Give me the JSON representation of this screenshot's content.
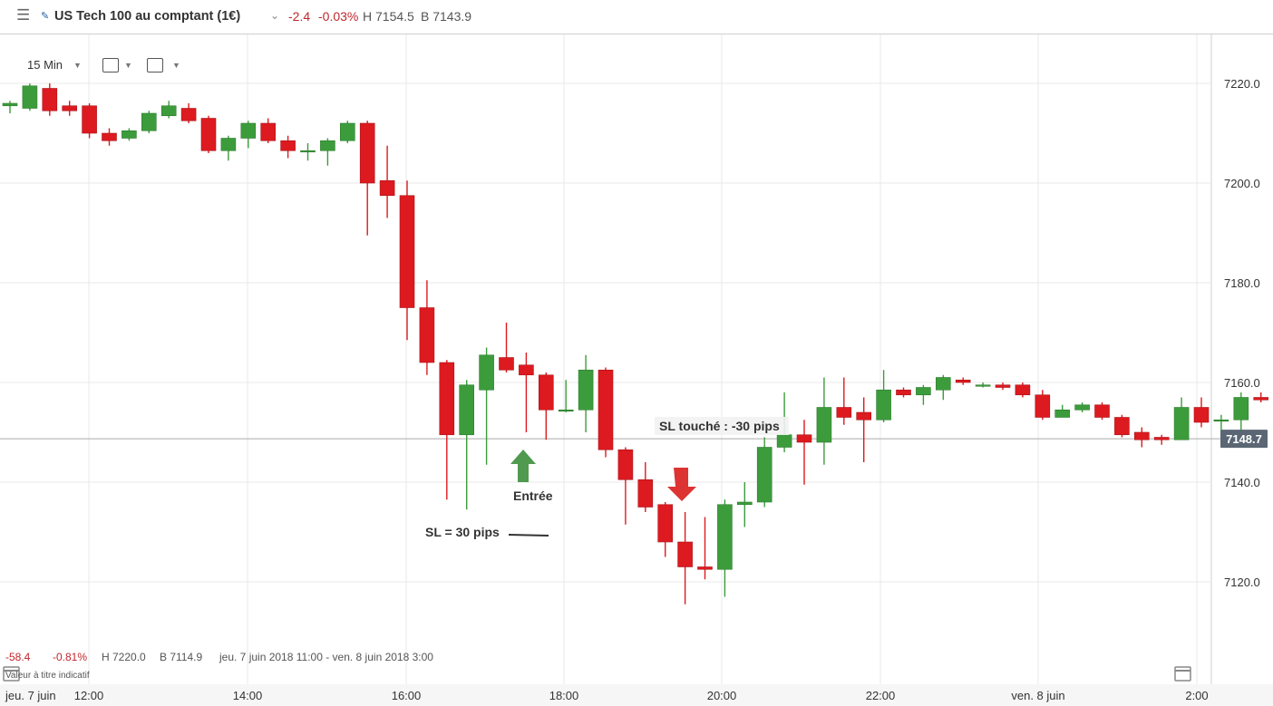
{
  "header": {
    "menu_icon": "hamburger-icon",
    "edit_icon": "pencil-icon",
    "title": "US Tech 100 au comptant (1€)",
    "change": "-2.4",
    "change_pct": "-0.03%",
    "high": "H 7154.5",
    "low": "B 7143.9"
  },
  "toolbar": {
    "interval": "15 Min",
    "tools": [
      "chart-type-icon",
      "indicators-icon"
    ]
  },
  "footer": {
    "change": "-58.4",
    "change_pct": "-0.81%",
    "high": "H 7220.0",
    "low": "B 7114.9",
    "range": "jeu. 7 juin 2018 11:00 - ven. 8 juin 2018 3:00",
    "disclaimer": "Valeur à titre indicatif"
  },
  "colors": {
    "up": "#3c9c3c",
    "down": "#dd1a1f",
    "grid": "#e8e8e8",
    "price_line": "#aaaaaa"
  },
  "chart_data": {
    "type": "candlestick",
    "interval": "15 Min",
    "y_ticks": [
      7120.0,
      7140.0,
      7160.0,
      7180.0,
      7200.0,
      7220.0
    ],
    "ylim": [
      7098,
      7229
    ],
    "x_ticks": [
      "jeu. 7 juin",
      "12:00",
      "14:00",
      "16:00",
      "18:00",
      "20:00",
      "22:00",
      "ven. 8 juin",
      "2:00"
    ],
    "current_price": "7148.7",
    "candles": [
      [
        7215.5,
        7216.0,
        7216.5,
        7214.0
      ],
      [
        7215.0,
        7219.5,
        7220.0,
        7214.5
      ],
      [
        7219.0,
        7214.5,
        7220.0,
        7213.5
      ],
      [
        7215.5,
        7214.5,
        7216.5,
        7213.5
      ],
      [
        7215.5,
        7210.0,
        7216.0,
        7209.0
      ],
      [
        7210.0,
        7208.5,
        7211.0,
        7207.5
      ],
      [
        7209.0,
        7210.5,
        7211.0,
        7208.5
      ],
      [
        7210.5,
        7214.0,
        7214.5,
        7210.0
      ],
      [
        7213.5,
        7215.5,
        7216.5,
        7213.0
      ],
      [
        7215.0,
        7212.5,
        7216.0,
        7212.0
      ],
      [
        7213.0,
        7206.5,
        7213.5,
        7206.0
      ],
      [
        7206.5,
        7209.0,
        7209.5,
        7204.5
      ],
      [
        7209.0,
        7212.0,
        7212.5,
        7207.0
      ],
      [
        7212.0,
        7208.5,
        7213.0,
        7208.0
      ],
      [
        7208.5,
        7206.5,
        7209.5,
        7205.0
      ],
      [
        7206.5,
        7206.5,
        7208.0,
        7204.5
      ],
      [
        7206.5,
        7208.5,
        7209.0,
        7203.5
      ],
      [
        7208.5,
        7212.0,
        7212.5,
        7208.0
      ],
      [
        7212.0,
        7200.0,
        7212.5,
        7189.5
      ],
      [
        7200.5,
        7197.5,
        7207.5,
        7193.0
      ],
      [
        7197.5,
        7175.0,
        7200.5,
        7168.5
      ],
      [
        7175.0,
        7164.0,
        7180.5,
        7161.5
      ],
      [
        7164.0,
        7149.5,
        7164.5,
        7136.5
      ],
      [
        7149.5,
        7159.5,
        7160.5,
        7134.5
      ],
      [
        7158.5,
        7165.5,
        7167.0,
        7143.5
      ],
      [
        7165.0,
        7162.5,
        7172.0,
        7162.0
      ],
      [
        7163.5,
        7161.5,
        7166.0,
        7150.0
      ],
      [
        7161.5,
        7154.5,
        7162.0,
        7148.5
      ],
      [
        7154.5,
        7154.5,
        7160.5,
        7154.0
      ],
      [
        7154.5,
        7162.5,
        7165.5,
        7150.0
      ],
      [
        7162.5,
        7146.5,
        7163.0,
        7145.0
      ],
      [
        7146.5,
        7140.5,
        7147.0,
        7131.5
      ],
      [
        7140.5,
        7135.0,
        7144.0,
        7134.0
      ],
      [
        7135.5,
        7128.0,
        7136.0,
        7125.0
      ],
      [
        7128.0,
        7123.0,
        7134.0,
        7115.5
      ],
      [
        7123.0,
        7122.5,
        7133.0,
        7120.5
      ],
      [
        7122.5,
        7135.5,
        7136.5,
        7117.0
      ],
      [
        7135.5,
        7136.0,
        7140.0,
        7131.0
      ],
      [
        7136.0,
        7147.0,
        7149.0,
        7135.0
      ],
      [
        7147.0,
        7149.5,
        7158.0,
        7146.0
      ],
      [
        7149.5,
        7148.0,
        7152.5,
        7139.5
      ],
      [
        7148.0,
        7155.0,
        7161.0,
        7143.5
      ],
      [
        7155.0,
        7153.0,
        7161.0,
        7151.5
      ],
      [
        7154.0,
        7152.5,
        7157.0,
        7144.0
      ],
      [
        7152.5,
        7158.5,
        7162.5,
        7152.0
      ],
      [
        7158.5,
        7157.5,
        7159.0,
        7157.0
      ],
      [
        7157.5,
        7159.0,
        7159.5,
        7155.5
      ],
      [
        7158.5,
        7161.0,
        7161.5,
        7156.5
      ],
      [
        7160.5,
        7160.0,
        7161.0,
        7159.5
      ],
      [
        7159.5,
        7159.5,
        7160.0,
        7159.0
      ],
      [
        7159.5,
        7159.0,
        7160.0,
        7158.5
      ],
      [
        7159.5,
        7157.5,
        7160.0,
        7157.0
      ],
      [
        7157.5,
        7153.0,
        7158.5,
        7152.5
      ],
      [
        7153.0,
        7154.5,
        7155.5,
        7153.0
      ],
      [
        7154.5,
        7155.5,
        7156.0,
        7154.0
      ],
      [
        7155.5,
        7153.0,
        7156.0,
        7152.5
      ],
      [
        7153.0,
        7149.5,
        7153.5,
        7149.0
      ],
      [
        7150.0,
        7148.5,
        7151.0,
        7147.0
      ],
      [
        7149.0,
        7148.5,
        7149.5,
        7147.5
      ],
      [
        7148.5,
        7155.0,
        7157.0,
        7148.5
      ],
      [
        7155.0,
        7152.0,
        7157.0,
        7151.0
      ],
      [
        7152.5,
        7152.5,
        7153.5,
        7149.0
      ],
      [
        7152.5,
        7157.0,
        7158.0,
        7148.5
      ],
      [
        7157.0,
        7156.5,
        7158.0,
        7156.0
      ],
      [
        7156.5,
        7156.5,
        7157.0,
        7156.0
      ]
    ],
    "annotations": {
      "sl_touche": "SL touché : -30 pips",
      "entree": "Entrée",
      "sl": "SL = 30 pips"
    }
  }
}
